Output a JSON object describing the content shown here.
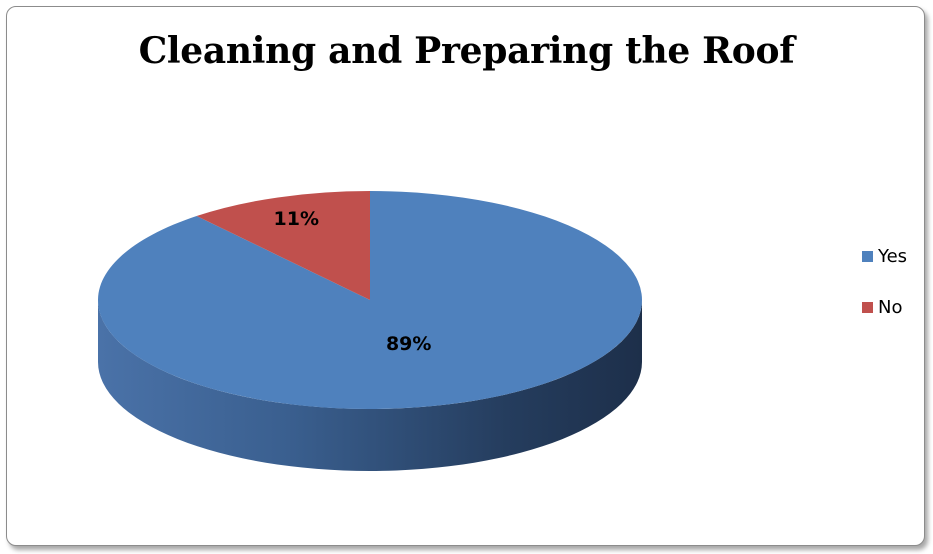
{
  "chart_data": {
    "type": "pie",
    "style": "3d",
    "title": "Cleaning and Preparing the Roof",
    "categories": [
      "Yes",
      "No"
    ],
    "values": [
      89,
      11
    ],
    "labels": [
      "89%",
      "11%"
    ],
    "colors": [
      "#4f81bd",
      "#c0504d"
    ],
    "legend": {
      "placement": "right",
      "items": [
        "Yes",
        "No"
      ]
    }
  }
}
